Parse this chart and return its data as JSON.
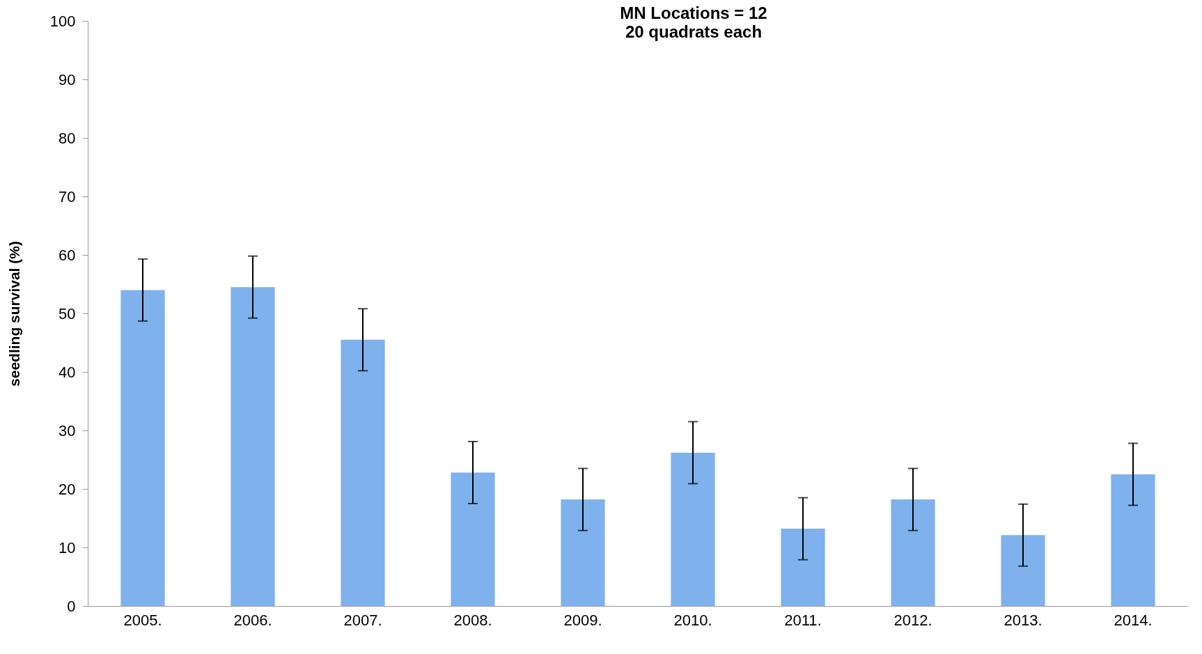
{
  "chart_data": {
    "type": "bar",
    "title": "MN Locations = 12",
    "subtitle": "20 quadrats each",
    "ylabel": "seedling survival (%)",
    "categories": [
      "2005.",
      "2006.",
      "2007.",
      "2008.",
      "2009.",
      "2010.",
      "2011.",
      "2012.",
      "2013.",
      "2014."
    ],
    "values": [
      54,
      54.5,
      45.5,
      22.8,
      18.2,
      26.2,
      13.2,
      18.2,
      12.1,
      22.5
    ],
    "errors": [
      5.3,
      5.3,
      5.3,
      5.3,
      5.3,
      5.3,
      5.3,
      5.3,
      5.3,
      5.3
    ],
    "color": "#7fb2ec",
    "ylim": [
      0,
      100
    ],
    "yticks": [
      0,
      10,
      20,
      30,
      40,
      50,
      60,
      70,
      80,
      90,
      100
    ],
    "grid": false
  }
}
